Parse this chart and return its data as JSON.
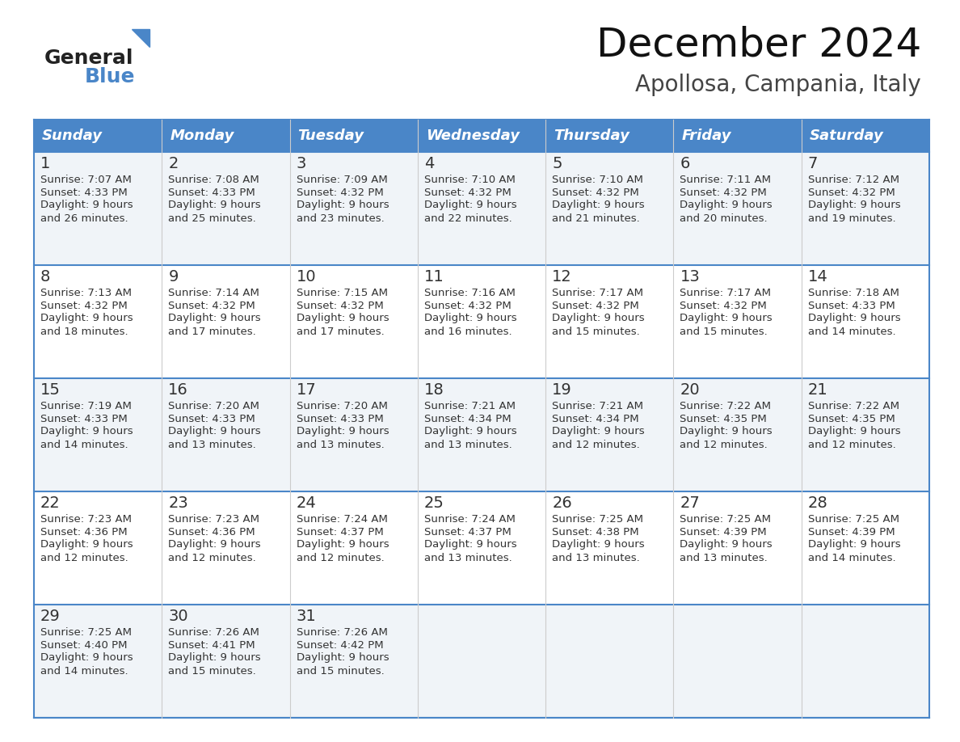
{
  "title": "December 2024",
  "subtitle": "Apollosa, Campania, Italy",
  "days_of_week": [
    "Sunday",
    "Monday",
    "Tuesday",
    "Wednesday",
    "Thursday",
    "Friday",
    "Saturday"
  ],
  "header_bg": "#4a86c8",
  "header_text": "#ffffff",
  "row_bg_even": "#f0f4f8",
  "row_bg_odd": "#ffffff",
  "border_color": "#4a86c8",
  "text_color": "#333333",
  "calendar_data": [
    [
      {
        "day": 1,
        "sunrise": "7:07 AM",
        "sunset": "4:33 PM",
        "daylight": "9 hours and 26 minutes."
      },
      {
        "day": 2,
        "sunrise": "7:08 AM",
        "sunset": "4:33 PM",
        "daylight": "9 hours and 25 minutes."
      },
      {
        "day": 3,
        "sunrise": "7:09 AM",
        "sunset": "4:32 PM",
        "daylight": "9 hours and 23 minutes."
      },
      {
        "day": 4,
        "sunrise": "7:10 AM",
        "sunset": "4:32 PM",
        "daylight": "9 hours and 22 minutes."
      },
      {
        "day": 5,
        "sunrise": "7:10 AM",
        "sunset": "4:32 PM",
        "daylight": "9 hours and 21 minutes."
      },
      {
        "day": 6,
        "sunrise": "7:11 AM",
        "sunset": "4:32 PM",
        "daylight": "9 hours and 20 minutes."
      },
      {
        "day": 7,
        "sunrise": "7:12 AM",
        "sunset": "4:32 PM",
        "daylight": "9 hours and 19 minutes."
      }
    ],
    [
      {
        "day": 8,
        "sunrise": "7:13 AM",
        "sunset": "4:32 PM",
        "daylight": "9 hours and 18 minutes."
      },
      {
        "day": 9,
        "sunrise": "7:14 AM",
        "sunset": "4:32 PM",
        "daylight": "9 hours and 17 minutes."
      },
      {
        "day": 10,
        "sunrise": "7:15 AM",
        "sunset": "4:32 PM",
        "daylight": "9 hours and 17 minutes."
      },
      {
        "day": 11,
        "sunrise": "7:16 AM",
        "sunset": "4:32 PM",
        "daylight": "9 hours and 16 minutes."
      },
      {
        "day": 12,
        "sunrise": "7:17 AM",
        "sunset": "4:32 PM",
        "daylight": "9 hours and 15 minutes."
      },
      {
        "day": 13,
        "sunrise": "7:17 AM",
        "sunset": "4:32 PM",
        "daylight": "9 hours and 15 minutes."
      },
      {
        "day": 14,
        "sunrise": "7:18 AM",
        "sunset": "4:33 PM",
        "daylight": "9 hours and 14 minutes."
      }
    ],
    [
      {
        "day": 15,
        "sunrise": "7:19 AM",
        "sunset": "4:33 PM",
        "daylight": "9 hours and 14 minutes."
      },
      {
        "day": 16,
        "sunrise": "7:20 AM",
        "sunset": "4:33 PM",
        "daylight": "9 hours and 13 minutes."
      },
      {
        "day": 17,
        "sunrise": "7:20 AM",
        "sunset": "4:33 PM",
        "daylight": "9 hours and 13 minutes."
      },
      {
        "day": 18,
        "sunrise": "7:21 AM",
        "sunset": "4:34 PM",
        "daylight": "9 hours and 13 minutes."
      },
      {
        "day": 19,
        "sunrise": "7:21 AM",
        "sunset": "4:34 PM",
        "daylight": "9 hours and 12 minutes."
      },
      {
        "day": 20,
        "sunrise": "7:22 AM",
        "sunset": "4:35 PM",
        "daylight": "9 hours and 12 minutes."
      },
      {
        "day": 21,
        "sunrise": "7:22 AM",
        "sunset": "4:35 PM",
        "daylight": "9 hours and 12 minutes."
      }
    ],
    [
      {
        "day": 22,
        "sunrise": "7:23 AM",
        "sunset": "4:36 PM",
        "daylight": "9 hours and 12 minutes."
      },
      {
        "day": 23,
        "sunrise": "7:23 AM",
        "sunset": "4:36 PM",
        "daylight": "9 hours and 12 minutes."
      },
      {
        "day": 24,
        "sunrise": "7:24 AM",
        "sunset": "4:37 PM",
        "daylight": "9 hours and 12 minutes."
      },
      {
        "day": 25,
        "sunrise": "7:24 AM",
        "sunset": "4:37 PM",
        "daylight": "9 hours and 13 minutes."
      },
      {
        "day": 26,
        "sunrise": "7:25 AM",
        "sunset": "4:38 PM",
        "daylight": "9 hours and 13 minutes."
      },
      {
        "day": 27,
        "sunrise": "7:25 AM",
        "sunset": "4:39 PM",
        "daylight": "9 hours and 13 minutes."
      },
      {
        "day": 28,
        "sunrise": "7:25 AM",
        "sunset": "4:39 PM",
        "daylight": "9 hours and 14 minutes."
      }
    ],
    [
      {
        "day": 29,
        "sunrise": "7:25 AM",
        "sunset": "4:40 PM",
        "daylight": "9 hours and 14 minutes."
      },
      {
        "day": 30,
        "sunrise": "7:26 AM",
        "sunset": "4:41 PM",
        "daylight": "9 hours and 15 minutes."
      },
      {
        "day": 31,
        "sunrise": "7:26 AM",
        "sunset": "4:42 PM",
        "daylight": "9 hours and 15 minutes."
      },
      null,
      null,
      null,
      null
    ]
  ],
  "logo_text_general": "General",
  "logo_text_blue": "Blue",
  "logo_color_general": "#222222",
  "logo_color_blue": "#4a86c8",
  "logo_triangle_color": "#4a86c8"
}
